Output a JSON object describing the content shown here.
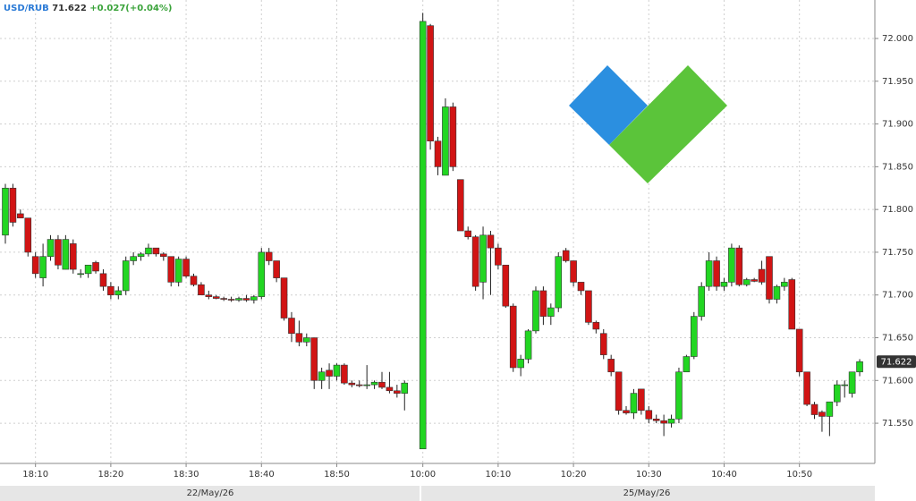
{
  "header": {
    "symbol": "USD/RUB",
    "price": "71.622",
    "change": "+0.027(+0.04%)"
  },
  "chart_data": {
    "type": "candlestick",
    "up_color": "#22d622",
    "down_color": "#d11414",
    "dates": [
      "22/May/26",
      "25/May/26"
    ],
    "ylim": [
      71.503,
      72.045
    ],
    "yticks": [
      {
        "value": 71.55,
        "label": "71.550"
      },
      {
        "value": 71.6,
        "label": "71.600"
      },
      {
        "value": 71.65,
        "label": "71.650"
      },
      {
        "value": 71.7,
        "label": "71.700"
      },
      {
        "value": 71.75,
        "label": "71.750"
      },
      {
        "value": 71.8,
        "label": "71.800"
      },
      {
        "value": 71.85,
        "label": "71.850"
      },
      {
        "value": 71.9,
        "label": "71.900"
      },
      {
        "value": 71.95,
        "label": "71.950"
      },
      {
        "value": 72.0,
        "label": "72.000"
      }
    ],
    "grid": true,
    "categories": [
      null,
      null,
      null,
      null,
      "18:10",
      null,
      null,
      null,
      null,
      null,
      null,
      null,
      null,
      null,
      "18:20",
      null,
      null,
      null,
      null,
      null,
      null,
      null,
      null,
      null,
      "18:30",
      null,
      null,
      null,
      null,
      null,
      null,
      null,
      null,
      null,
      "18:40",
      null,
      null,
      null,
      null,
      null,
      null,
      null,
      null,
      null,
      "18:50",
      null,
      null,
      null,
      null,
      null,
      null,
      null,
      null,
      null,
      "10:00",
      null,
      null,
      null,
      null,
      null,
      null,
      null,
      null,
      null,
      "10:10",
      null,
      null,
      null,
      null,
      null,
      null,
      null,
      null,
      null,
      "10:20",
      null,
      null,
      null,
      null,
      null,
      null,
      null,
      null,
      null,
      "10:30",
      null,
      null,
      null,
      null,
      null,
      null,
      null,
      null,
      null,
      "10:40",
      null,
      null,
      null,
      null,
      null,
      null,
      null,
      null,
      null,
      "10:50",
      null,
      null,
      null,
      null,
      null,
      null,
      null,
      null
    ],
    "candles": [
      [
        71.77,
        71.83,
        71.76,
        71.825
      ],
      [
        71.825,
        71.83,
        71.78,
        71.785
      ],
      [
        71.795,
        71.8,
        71.79,
        71.79
      ],
      [
        71.79,
        71.79,
        71.745,
        71.75
      ],
      [
        71.745,
        71.75,
        71.72,
        71.725
      ],
      [
        71.72,
        71.76,
        71.71,
        71.745
      ],
      [
        71.745,
        71.77,
        71.74,
        71.765
      ],
      [
        71.765,
        71.77,
        71.73,
        71.735
      ],
      [
        71.73,
        71.77,
        71.73,
        71.765
      ],
      [
        71.76,
        71.765,
        71.725,
        71.73
      ],
      [
        71.725,
        71.73,
        71.72,
        71.725
      ],
      [
        71.725,
        71.735,
        71.72,
        71.735
      ],
      [
        71.738,
        71.74,
        71.725,
        71.728
      ],
      [
        71.725,
        71.73,
        71.705,
        71.71
      ],
      [
        71.71,
        71.715,
        71.695,
        71.7
      ],
      [
        71.7,
        71.71,
        71.695,
        71.705
      ],
      [
        71.705,
        71.745,
        71.7,
        71.74
      ],
      [
        71.74,
        71.75,
        71.735,
        71.745
      ],
      [
        71.745,
        71.75,
        71.74,
        71.748
      ],
      [
        71.748,
        71.76,
        71.745,
        71.755
      ],
      [
        71.755,
        71.755,
        71.745,
        71.748
      ],
      [
        71.748,
        71.75,
        71.74,
        71.745
      ],
      [
        71.745,
        71.745,
        71.71,
        71.715
      ],
      [
        71.715,
        71.745,
        71.71,
        71.742
      ],
      [
        71.742,
        71.745,
        71.72,
        71.722
      ],
      [
        71.722,
        71.725,
        71.71,
        71.712
      ],
      [
        71.712,
        71.715,
        71.7,
        71.7
      ],
      [
        71.7,
        71.705,
        71.695,
        71.698
      ],
      [
        71.698,
        71.7,
        71.695,
        71.696
      ],
      [
        71.696,
        71.698,
        71.693,
        71.695
      ],
      [
        71.695,
        71.698,
        71.692,
        71.694
      ],
      [
        71.694,
        71.698,
        71.692,
        71.696
      ],
      [
        71.696,
        71.7,
        71.692,
        71.694
      ],
      [
        71.694,
        71.7,
        71.69,
        71.698
      ],
      [
        71.698,
        71.755,
        71.695,
        71.75
      ],
      [
        71.75,
        71.755,
        71.735,
        71.74
      ],
      [
        71.74,
        71.74,
        71.715,
        71.72
      ],
      [
        71.72,
        71.72,
        71.67,
        71.673
      ],
      [
        71.673,
        71.68,
        71.645,
        71.655
      ],
      [
        71.655,
        71.67,
        71.64,
        71.645
      ],
      [
        71.645,
        71.655,
        71.64,
        71.65
      ],
      [
        71.65,
        71.65,
        71.59,
        71.6
      ],
      [
        71.6,
        71.615,
        71.59,
        71.61
      ],
      [
        71.612,
        71.62,
        71.59,
        71.605
      ],
      [
        71.605,
        71.62,
        71.6,
        71.618
      ],
      [
        71.618,
        71.62,
        71.595,
        71.597
      ],
      [
        71.597,
        71.6,
        71.592,
        71.595
      ],
      [
        71.595,
        71.6,
        71.592,
        71.594
      ],
      [
        71.594,
        71.618,
        71.59,
        71.595
      ],
      [
        71.595,
        71.6,
        71.59,
        71.598
      ],
      [
        71.598,
        71.61,
        71.59,
        71.592
      ],
      [
        71.592,
        71.61,
        71.585,
        71.588
      ],
      [
        71.588,
        71.595,
        71.58,
        71.585
      ],
      [
        71.585,
        71.6,
        71.565,
        71.597
      ],
      [
        71.52,
        72.03,
        71.52,
        72.02
      ],
      [
        72.015,
        72.017,
        71.87,
        71.88
      ],
      [
        71.88,
        71.885,
        71.84,
        71.85
      ],
      [
        71.84,
        71.93,
        71.84,
        71.92
      ],
      [
        71.92,
        71.925,
        71.845,
        71.85
      ],
      [
        71.835,
        71.835,
        71.775,
        71.775
      ],
      [
        71.775,
        71.78,
        71.765,
        71.768
      ],
      [
        71.768,
        71.77,
        71.705,
        71.71
      ],
      [
        71.715,
        71.78,
        71.695,
        71.77
      ],
      [
        71.77,
        71.775,
        71.7,
        71.755
      ],
      [
        71.755,
        71.76,
        71.73,
        71.735
      ],
      [
        71.735,
        71.735,
        71.685,
        71.687
      ],
      [
        71.687,
        71.69,
        71.61,
        71.615
      ],
      [
        71.615,
        71.63,
        71.605,
        71.625
      ],
      [
        71.625,
        71.66,
        71.62,
        71.658
      ],
      [
        71.658,
        71.71,
        71.655,
        71.705
      ],
      [
        71.705,
        71.71,
        71.665,
        71.675
      ],
      [
        71.675,
        71.69,
        71.665,
        71.685
      ],
      [
        71.685,
        71.75,
        71.68,
        71.745
      ],
      [
        71.752,
        71.755,
        71.738,
        71.74
      ],
      [
        71.74,
        71.74,
        71.71,
        71.715
      ],
      [
        71.715,
        71.715,
        71.7,
        71.705
      ],
      [
        71.705,
        71.705,
        71.665,
        71.668
      ],
      [
        71.668,
        71.67,
        71.655,
        71.66
      ],
      [
        71.655,
        71.66,
        71.625,
        71.63
      ],
      [
        71.625,
        71.63,
        71.605,
        71.61
      ],
      [
        71.61,
        71.61,
        71.56,
        71.565
      ],
      [
        71.565,
        71.57,
        71.56,
        71.562
      ],
      [
        71.562,
        71.59,
        71.555,
        71.585
      ],
      [
        71.59,
        71.59,
        71.56,
        71.565
      ],
      [
        71.565,
        71.57,
        71.55,
        71.555
      ],
      [
        71.555,
        71.56,
        71.55,
        71.553
      ],
      [
        71.553,
        71.56,
        71.535,
        71.55
      ],
      [
        71.55,
        71.56,
        71.545,
        71.555
      ],
      [
        71.555,
        71.615,
        71.55,
        71.61
      ],
      [
        71.61,
        71.63,
        71.61,
        71.628
      ],
      [
        71.628,
        71.68,
        71.625,
        71.675
      ],
      [
        71.675,
        71.715,
        71.67,
        71.71
      ],
      [
        71.71,
        71.75,
        71.705,
        71.74
      ],
      [
        71.74,
        71.745,
        71.705,
        71.71
      ],
      [
        71.71,
        71.72,
        71.705,
        71.715
      ],
      [
        71.715,
        71.76,
        71.71,
        71.755
      ],
      [
        71.755,
        71.758,
        71.71,
        71.712
      ],
      [
        71.712,
        71.72,
        71.71,
        71.718
      ],
      [
        71.718,
        71.72,
        71.715,
        71.716
      ],
      [
        71.73,
        71.74,
        71.712,
        71.715
      ],
      [
        71.745,
        71.745,
        71.69,
        71.695
      ],
      [
        71.695,
        71.712,
        71.69,
        71.71
      ],
      [
        71.71,
        71.72,
        71.705,
        71.715
      ],
      [
        71.718,
        71.72,
        71.66,
        71.66
      ],
      [
        71.66,
        71.66,
        71.605,
        71.61
      ],
      [
        71.61,
        71.61,
        71.57,
        71.572
      ],
      [
        71.572,
        71.575,
        71.555,
        71.56
      ],
      [
        71.563,
        71.565,
        71.54,
        71.558
      ],
      [
        71.558,
        71.575,
        71.535,
        71.575
      ],
      [
        71.575,
        71.6,
        71.57,
        71.595
      ],
      [
        71.595,
        71.6,
        71.58,
        71.595
      ],
      [
        71.585,
        71.61,
        71.58,
        71.61
      ],
      [
        71.61,
        71.625,
        71.605,
        71.622
      ]
    ]
  }
}
